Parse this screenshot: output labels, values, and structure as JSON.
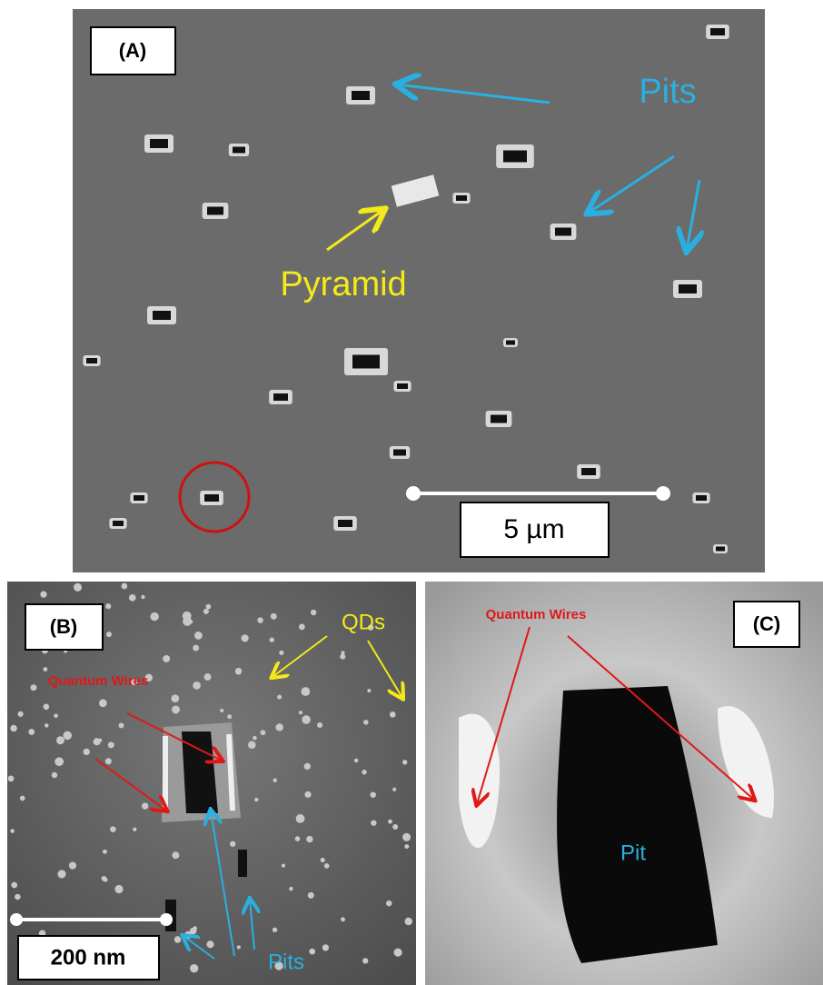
{
  "panel_a": {
    "label": "(A)",
    "pits_label": "Pits",
    "pyramid_label": "Pyramid",
    "scale_label": "5 µm"
  },
  "panel_b": {
    "label": "(B)",
    "qds_label": "QDs",
    "wires_label": "Quantum Wires",
    "pits_label": "Pits",
    "scale_label": "200 nm"
  },
  "panel_c": {
    "label": "(C)",
    "wires_label": "Quantum Wires",
    "pit_label": "Pit"
  }
}
